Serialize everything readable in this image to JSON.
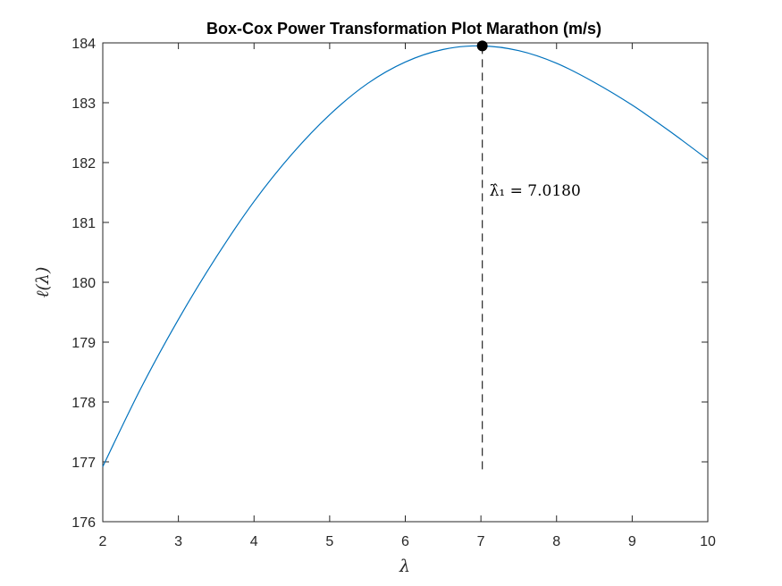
{
  "chart_data": {
    "type": "line",
    "title": "Box-Cox Power Transformation Plot Marathon (m/s)",
    "xlabel": "λ",
    "ylabel": "ℓ(λ)",
    "xlim": [
      2,
      10
    ],
    "ylim": [
      176,
      184
    ],
    "xticks": [
      2,
      3,
      4,
      5,
      6,
      7,
      8,
      9,
      10
    ],
    "yticks": [
      176,
      177,
      178,
      179,
      180,
      181,
      182,
      183,
      184
    ],
    "grid": false,
    "series": [
      {
        "color": "#0072BD",
        "x": [
          2.0,
          2.5,
          3.0,
          3.5,
          4.0,
          4.5,
          5.0,
          5.5,
          6.0,
          6.5,
          7.0,
          7.5,
          8.0,
          8.5,
          9.0,
          9.5,
          10.0
        ],
        "y": [
          176.92,
          178.22,
          179.38,
          180.42,
          181.35,
          182.14,
          182.8,
          183.32,
          183.68,
          183.89,
          183.95,
          183.87,
          183.66,
          183.34,
          182.96,
          182.52,
          182.05
        ]
      }
    ],
    "optimum": {
      "x": 7.018,
      "y": 183.95,
      "line_bottom": 176.85,
      "marker_color": "#000000",
      "line_color": "#262626",
      "label": "λ̂₁ = 7.0180",
      "label_y": 181.45
    }
  }
}
